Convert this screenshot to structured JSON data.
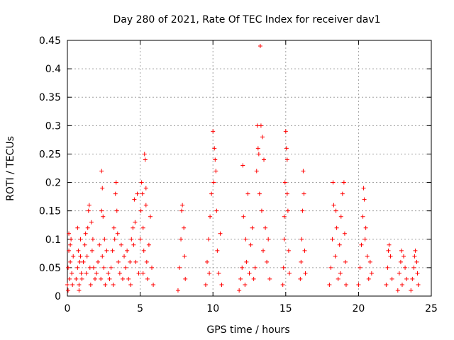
{
  "chart_data": {
    "type": "scatter",
    "title": "Day 280 of 2021, Rate Of TEC Index for receiver dav1",
    "xlabel": "GPS time / hours",
    "ylabel": "ROTI / TECUs",
    "xlim": [
      0,
      25
    ],
    "ylim": [
      0,
      0.45
    ],
    "xticks": [
      "0",
      "5",
      "10",
      "15",
      "20",
      "25"
    ],
    "yticks": [
      "0",
      "0.05",
      "0.1",
      "0.15",
      "0.2",
      "0.25",
      "0.3",
      "0.35",
      "0.4",
      "0.45"
    ],
    "grid": true,
    "marker": "+",
    "color": "#ff0000",
    "series": [
      {
        "points": [
          [
            0.0,
            0.02
          ],
          [
            0.05,
            0.05
          ],
          [
            0.1,
            0.08
          ],
          [
            0.15,
            0.03
          ],
          [
            0.2,
            0.06
          ],
          [
            0.25,
            0.1
          ],
          [
            0.3,
            0.04
          ],
          [
            0.35,
            0.02
          ],
          [
            0.4,
            0.07
          ],
          [
            0.1,
            0.11
          ],
          [
            0.2,
            0.09
          ],
          [
            0.05,
            0.01
          ],
          [
            0.6,
            0.03
          ],
          [
            0.7,
            0.05
          ],
          [
            0.75,
            0.08
          ],
          [
            0.8,
            0.02
          ],
          [
            0.85,
            0.06
          ],
          [
            0.9,
            0.1
          ],
          [
            0.95,
            0.04
          ],
          [
            0.7,
            0.12
          ],
          [
            0.8,
            0.01
          ],
          [
            0.9,
            0.07
          ],
          [
            1.0,
            0.03
          ],
          [
            1.1,
            0.06
          ],
          [
            1.2,
            0.09
          ],
          [
            1.3,
            0.04
          ],
          [
            1.4,
            0.12
          ],
          [
            1.45,
            0.15
          ],
          [
            1.5,
            0.16
          ],
          [
            1.55,
            0.05
          ],
          [
            1.6,
            0.02
          ],
          [
            1.7,
            0.08
          ],
          [
            1.8,
            0.05
          ],
          [
            1.9,
            0.03
          ],
          [
            1.25,
            0.11
          ],
          [
            1.35,
            0.07
          ],
          [
            1.65,
            0.13
          ],
          [
            1.75,
            0.1
          ],
          [
            2.0,
            0.04
          ],
          [
            2.1,
            0.06
          ],
          [
            2.2,
            0.09
          ],
          [
            2.3,
            0.03
          ],
          [
            2.4,
            0.07
          ],
          [
            2.35,
            0.15
          ],
          [
            2.4,
            0.19
          ],
          [
            2.35,
            0.22
          ],
          [
            2.5,
            0.05
          ],
          [
            2.6,
            0.02
          ],
          [
            2.7,
            0.08
          ],
          [
            2.8,
            0.04
          ],
          [
            2.9,
            0.03
          ],
          [
            2.45,
            0.14
          ],
          [
            2.55,
            0.1
          ],
          [
            3.0,
            0.05
          ],
          [
            3.1,
            0.08
          ],
          [
            3.2,
            0.12
          ],
          [
            3.3,
            0.18
          ],
          [
            3.35,
            0.2
          ],
          [
            3.4,
            0.15
          ],
          [
            3.5,
            0.06
          ],
          [
            3.6,
            0.04
          ],
          [
            3.7,
            0.09
          ],
          [
            3.8,
            0.03
          ],
          [
            3.9,
            0.07
          ],
          [
            3.25,
            0.1
          ],
          [
            3.45,
            0.11
          ],
          [
            3.15,
            0.02
          ],
          [
            4.0,
            0.05
          ],
          [
            4.1,
            0.08
          ],
          [
            4.2,
            0.03
          ],
          [
            4.3,
            0.06
          ],
          [
            4.4,
            0.1
          ],
          [
            4.5,
            0.12
          ],
          [
            4.55,
            0.09
          ],
          [
            4.6,
            0.17
          ],
          [
            4.7,
            0.06
          ],
          [
            4.8,
            0.18
          ],
          [
            4.9,
            0.04
          ],
          [
            4.35,
            0.02
          ],
          [
            4.65,
            0.13
          ],
          [
            5.0,
            0.1
          ],
          [
            5.05,
            0.15
          ],
          [
            5.1,
            0.2
          ],
          [
            5.15,
            0.18
          ],
          [
            5.2,
            0.12
          ],
          [
            5.25,
            0.08
          ],
          [
            5.3,
            0.25
          ],
          [
            5.35,
            0.24
          ],
          [
            5.4,
            0.16
          ],
          [
            5.45,
            0.06
          ],
          [
            5.5,
            0.03
          ],
          [
            5.6,
            0.09
          ],
          [
            5.7,
            0.14
          ],
          [
            5.8,
            0.05
          ],
          [
            5.9,
            0.02
          ],
          [
            5.4,
            0.19
          ],
          [
            5.2,
            0.04
          ],
          [
            7.6,
            0.01
          ],
          [
            7.7,
            0.05
          ],
          [
            7.8,
            0.1
          ],
          [
            7.9,
            0.16
          ],
          [
            8.0,
            0.12
          ],
          [
            8.1,
            0.03
          ],
          [
            7.85,
            0.15
          ],
          [
            8.05,
            0.07
          ],
          [
            9.5,
            0.02
          ],
          [
            9.6,
            0.06
          ],
          [
            9.7,
            0.1
          ],
          [
            9.8,
            0.14
          ],
          [
            9.9,
            0.18
          ],
          [
            10.0,
            0.29
          ],
          [
            10.05,
            0.2
          ],
          [
            10.1,
            0.26
          ],
          [
            10.15,
            0.24
          ],
          [
            10.2,
            0.22
          ],
          [
            10.3,
            0.08
          ],
          [
            10.4,
            0.04
          ],
          [
            10.5,
            0.11
          ],
          [
            10.6,
            0.02
          ],
          [
            9.75,
            0.04
          ],
          [
            10.25,
            0.15
          ],
          [
            11.8,
            0.01
          ],
          [
            11.9,
            0.03
          ],
          [
            12.0,
            0.05
          ],
          [
            12.05,
            0.23
          ],
          [
            12.1,
            0.14
          ],
          [
            12.2,
            0.02
          ],
          [
            12.3,
            0.06
          ],
          [
            12.4,
            0.18
          ],
          [
            12.5,
            0.04
          ],
          [
            12.6,
            0.09
          ],
          [
            12.7,
            0.12
          ],
          [
            12.8,
            0.03
          ],
          [
            12.25,
            0.1
          ],
          [
            12.9,
            0.05
          ],
          [
            13.0,
            0.22
          ],
          [
            13.05,
            0.3
          ],
          [
            13.1,
            0.26
          ],
          [
            13.15,
            0.25
          ],
          [
            13.2,
            0.18
          ],
          [
            13.25,
            0.44
          ],
          [
            13.3,
            0.3
          ],
          [
            13.4,
            0.28
          ],
          [
            13.5,
            0.24
          ],
          [
            13.6,
            0.12
          ],
          [
            13.7,
            0.06
          ],
          [
            13.8,
            0.1
          ],
          [
            13.9,
            0.03
          ],
          [
            13.35,
            0.15
          ],
          [
            13.45,
            0.08
          ],
          [
            14.8,
            0.02
          ],
          [
            14.85,
            0.05
          ],
          [
            14.9,
            0.1
          ],
          [
            14.95,
            0.2
          ],
          [
            15.0,
            0.29
          ],
          [
            15.05,
            0.26
          ],
          [
            15.1,
            0.24
          ],
          [
            15.15,
            0.15
          ],
          [
            15.2,
            0.08
          ],
          [
            15.25,
            0.04
          ],
          [
            14.9,
            0.14
          ],
          [
            15.1,
            0.18
          ],
          [
            16.0,
            0.03
          ],
          [
            16.05,
            0.06
          ],
          [
            16.1,
            0.1
          ],
          [
            16.15,
            0.15
          ],
          [
            16.2,
            0.22
          ],
          [
            16.25,
            0.18
          ],
          [
            16.3,
            0.08
          ],
          [
            16.35,
            0.04
          ],
          [
            18.0,
            0.02
          ],
          [
            18.1,
            0.05
          ],
          [
            18.2,
            0.1
          ],
          [
            18.25,
            0.2
          ],
          [
            18.3,
            0.16
          ],
          [
            18.4,
            0.07
          ],
          [
            18.5,
            0.12
          ],
          [
            18.6,
            0.03
          ],
          [
            18.7,
            0.09
          ],
          [
            18.8,
            0.14
          ],
          [
            18.9,
            0.18
          ],
          [
            19.0,
            0.2
          ],
          [
            19.05,
            0.11
          ],
          [
            19.1,
            0.06
          ],
          [
            19.15,
            0.02
          ],
          [
            18.45,
            0.15
          ],
          [
            18.75,
            0.04
          ],
          [
            20.0,
            0.02
          ],
          [
            20.1,
            0.05
          ],
          [
            20.2,
            0.09
          ],
          [
            20.3,
            0.14
          ],
          [
            20.35,
            0.19
          ],
          [
            20.4,
            0.17
          ],
          [
            20.5,
            0.12
          ],
          [
            20.6,
            0.07
          ],
          [
            20.7,
            0.03
          ],
          [
            20.8,
            0.06
          ],
          [
            20.9,
            0.04
          ],
          [
            20.45,
            0.1
          ],
          [
            21.9,
            0.02
          ],
          [
            22.0,
            0.05
          ],
          [
            22.1,
            0.09
          ],
          [
            22.2,
            0.07
          ],
          [
            22.3,
            0.03
          ],
          [
            22.05,
            0.08
          ],
          [
            22.7,
            0.01
          ],
          [
            22.8,
            0.04
          ],
          [
            22.9,
            0.06
          ],
          [
            23.0,
            0.02
          ],
          [
            23.1,
            0.07
          ],
          [
            23.2,
            0.05
          ],
          [
            23.3,
            0.03
          ],
          [
            22.95,
            0.08
          ],
          [
            23.6,
            0.01
          ],
          [
            23.7,
            0.03
          ],
          [
            23.8,
            0.05
          ],
          [
            23.9,
            0.08
          ],
          [
            24.0,
            0.06
          ],
          [
            24.05,
            0.04
          ],
          [
            24.1,
            0.02
          ],
          [
            23.85,
            0.07
          ]
        ]
      }
    ]
  }
}
